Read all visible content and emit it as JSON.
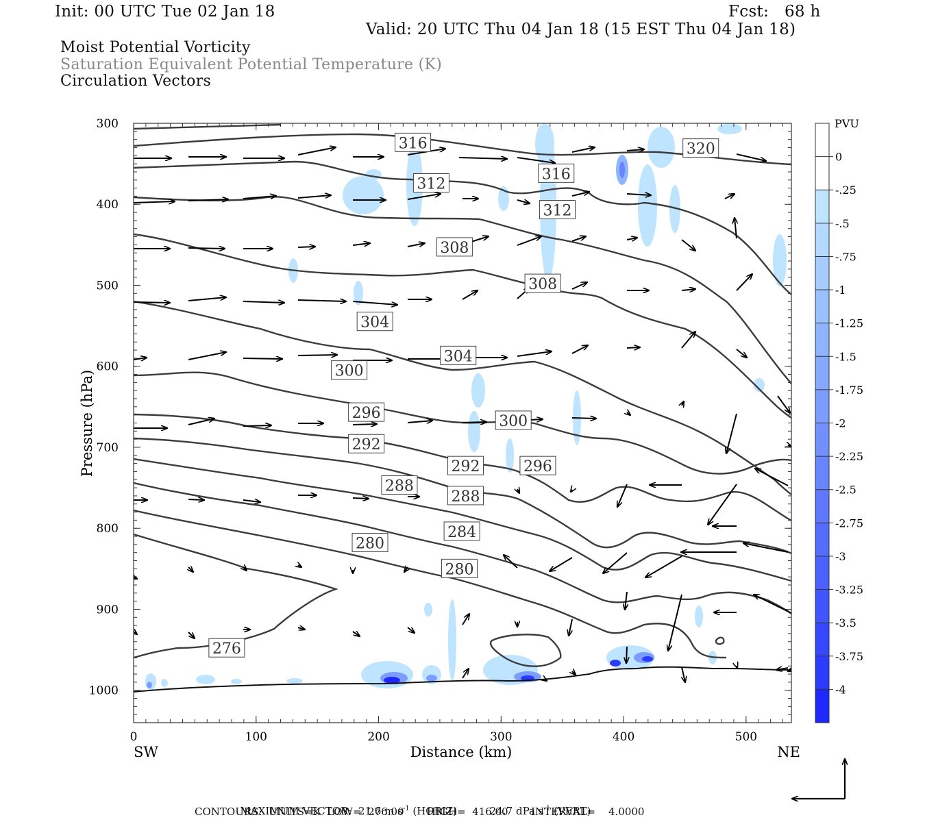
{
  "header": {
    "init": "Init: 00 UTC Tue 02 Jan 18",
    "fcst": "Fcst:   68 h",
    "valid": "Valid: 20 UTC Thu 04 Jan 18 (15 EST Thu 04 Jan 18)"
  },
  "fields": [
    {
      "label": "Moist Potential Vorticity",
      "color": "#111111"
    },
    {
      "label": "Saturation Equivalent Potential Temperature (K)",
      "color": "#888888"
    },
    {
      "label": "Circulation Vectors",
      "color": "#111111"
    }
  ],
  "chart_data": {
    "type": "cross-section",
    "xlabel": "Distance (km)",
    "ylabel": "Pressure (hPa)",
    "xlim": [
      0,
      537
    ],
    "ylim": [
      1040,
      300
    ],
    "xticks": [
      "0",
      "100",
      "200",
      "300",
      "400",
      "500"
    ],
    "yticks": [
      "300",
      "400",
      "500",
      "600",
      "700",
      "800",
      "900",
      "1000"
    ],
    "endpoints": {
      "left": "SW",
      "right": "NE"
    },
    "colorbar": {
      "unit": "PVU",
      "labels": [
        "0",
        "-.25",
        "-.5",
        "-.75",
        "-1",
        "-1.25",
        "-1.5",
        "-1.75",
        "-2",
        "-2.25",
        "-2.5",
        "-2.75",
        "-3",
        "-3.25",
        "-3.5",
        "-3.75",
        "-4"
      ],
      "colors": [
        "#ffffff",
        "#ffffff",
        "#bfe4ff",
        "#b4d9ff",
        "#a6ccff",
        "#99c0ff",
        "#8fb4ff",
        "#86a8ff",
        "#7c9cff",
        "#7290ff",
        "#6884ff",
        "#5e78ff",
        "#546cff",
        "#4a60ff",
        "#4054ff",
        "#3648ff",
        "#2c3cff",
        "#1e28ff"
      ]
    },
    "contour_labels": [
      {
        "text": "316",
        "x": 228,
        "p": 324
      },
      {
        "text": "312",
        "x": 243,
        "p": 374
      },
      {
        "text": "316",
        "x": 345,
        "p": 362
      },
      {
        "text": "312",
        "x": 346,
        "p": 407
      },
      {
        "text": "320",
        "x": 463,
        "p": 331
      },
      {
        "text": "308",
        "x": 262,
        "p": 453
      },
      {
        "text": "308",
        "x": 334,
        "p": 498
      },
      {
        "text": "304",
        "x": 197,
        "p": 545
      },
      {
        "text": "304",
        "x": 265,
        "p": 587
      },
      {
        "text": "300",
        "x": 176,
        "p": 605
      },
      {
        "text": "296",
        "x": 190,
        "p": 657
      },
      {
        "text": "300",
        "x": 310,
        "p": 667
      },
      {
        "text": "292",
        "x": 190,
        "p": 696
      },
      {
        "text": "292",
        "x": 271,
        "p": 723
      },
      {
        "text": "296",
        "x": 330,
        "p": 723
      },
      {
        "text": "288",
        "x": 217,
        "p": 747
      },
      {
        "text": "288",
        "x": 271,
        "p": 760
      },
      {
        "text": "284",
        "x": 268,
        "p": 804
      },
      {
        "text": "280",
        "x": 193,
        "p": 818
      },
      {
        "text": "280",
        "x": 266,
        "p": 850
      },
      {
        "text": "276",
        "x": 76,
        "p": 948
      }
    ],
    "footer": {
      "max_vector_prefix": "MAXIMUM VECTOR:",
      "horiz_value": "21.6",
      "horiz_unit": "m s",
      "horiz_tag": "(HORIZ)",
      "vert_value": "24.7",
      "vert_unit": "dPa s",
      "vert_tag": "(VERT)",
      "exponent": "-1",
      "contours": "CONTOURS:  UNITS=K  LOW=  276.00       HIGH=  416.00       INTERVAL=    4.0000"
    }
  }
}
